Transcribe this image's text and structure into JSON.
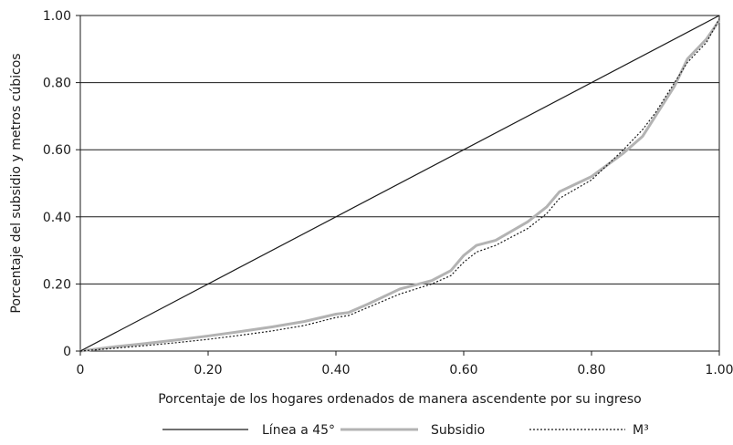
{
  "chart_data": {
    "type": "line",
    "title": "",
    "xlabel": "Porcentaje de los hogares ordenados de manera ascendente por su ingreso",
    "ylabel": "Porcentaje del subsidio y metros cúbicos",
    "xlim": [
      0,
      1
    ],
    "ylim": [
      0,
      1
    ],
    "x_ticks": [
      "0",
      "0.20",
      "0.40",
      "0.60",
      "0.80",
      "1.00"
    ],
    "y_ticks": [
      "0",
      "0.20",
      "0.40",
      "0.60",
      "0.80",
      "1.00"
    ],
    "grid": "horizontal",
    "legend_position": "bottom",
    "series": [
      {
        "name": "Línea a 45°",
        "color": "#1a1a1a",
        "style": "solid",
        "x": [
          0,
          1
        ],
        "y": [
          0,
          1
        ]
      },
      {
        "name": "Subsidio",
        "color": "#b3b3b3",
        "style": "solid",
        "x": [
          0,
          0.05,
          0.1,
          0.15,
          0.2,
          0.25,
          0.3,
          0.35,
          0.4,
          0.42,
          0.45,
          0.5,
          0.55,
          0.58,
          0.6,
          0.62,
          0.65,
          0.7,
          0.73,
          0.75,
          0.8,
          0.85,
          0.88,
          0.9,
          0.93,
          0.95,
          0.98,
          1.0
        ],
        "y": [
          0,
          0.012,
          0.022,
          0.033,
          0.045,
          0.058,
          0.072,
          0.088,
          0.11,
          0.115,
          0.14,
          0.185,
          0.21,
          0.24,
          0.285,
          0.315,
          0.33,
          0.385,
          0.43,
          0.475,
          0.52,
          0.59,
          0.64,
          0.7,
          0.79,
          0.87,
          0.93,
          0.985
        ]
      },
      {
        "name": "M³",
        "color": "#1a1a1a",
        "style": "dotted",
        "x": [
          0,
          0.05,
          0.1,
          0.15,
          0.2,
          0.25,
          0.3,
          0.35,
          0.4,
          0.42,
          0.45,
          0.5,
          0.55,
          0.58,
          0.6,
          0.62,
          0.65,
          0.7,
          0.73,
          0.75,
          0.8,
          0.85,
          0.88,
          0.9,
          0.93,
          0.95,
          0.98,
          1.0
        ],
        "y": [
          0,
          0.008,
          0.016,
          0.025,
          0.035,
          0.047,
          0.06,
          0.076,
          0.1,
          0.106,
          0.13,
          0.17,
          0.2,
          0.225,
          0.265,
          0.295,
          0.315,
          0.365,
          0.41,
          0.455,
          0.51,
          0.6,
          0.66,
          0.71,
          0.8,
          0.86,
          0.92,
          0.99
        ]
      }
    ]
  }
}
